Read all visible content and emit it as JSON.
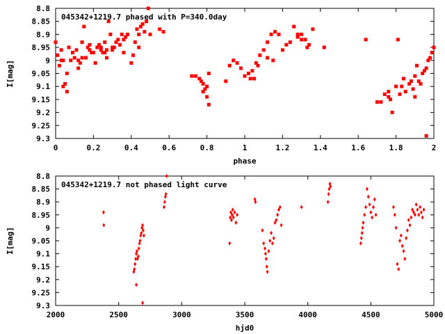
{
  "chart_data": [
    {
      "type": "scatter",
      "title": "045342+1219.7 phased with P=340.0day",
      "xlabel": "phase",
      "ylabel": "I[mag]",
      "xlim": [
        0,
        2
      ],
      "ylim": [
        9.3,
        8.8
      ],
      "y_inverted": true,
      "x_ticks": [
        "0",
        "0.2",
        "0.4",
        "0.6",
        "0.8",
        "1",
        "1.2",
        "1.4",
        "1.6",
        "1.8",
        "2"
      ],
      "y_ticks": [
        "8.8",
        "8.85",
        "8.9",
        "8.95",
        "9",
        "9.05",
        "9.1",
        "9.15",
        "9.2",
        "9.25",
        "9.3"
      ],
      "marker_color": "#ff0000",
      "series": [
        {
          "x": [
            0.0,
            0.01,
            0.02,
            0.03,
            0.04,
            0.05,
            0.06,
            0.07,
            0.08,
            0.09,
            0.1,
            0.11,
            0.12,
            0.13,
            0.14,
            0.15,
            0.16,
            0.17,
            0.18,
            0.19,
            0.2,
            0.21,
            0.22,
            0.23,
            0.24,
            0.25,
            0.26,
            0.27,
            0.28,
            0.29,
            0.3,
            0.31,
            0.32,
            0.33,
            0.34,
            0.35,
            0.36,
            0.37,
            0.38,
            0.4,
            0.41,
            0.42,
            0.43,
            0.44,
            0.45,
            0.46,
            0.47,
            0.48,
            0.49,
            0.5,
            0.55,
            0.57,
            0.72,
            0.74,
            0.76,
            0.77,
            0.78,
            0.79,
            0.8,
            0.81,
            0.9,
            0.92,
            0.94,
            0.96,
            0.98,
            1.0,
            1.02,
            1.04,
            1.06,
            1.08,
            1.1,
            1.12,
            1.14,
            1.16,
            1.18,
            1.2,
            1.22,
            1.24,
            1.26,
            1.28,
            1.3,
            1.32,
            1.34,
            1.36,
            1.64,
            1.7,
            1.72,
            1.74,
            1.76,
            1.78,
            1.8,
            1.81,
            1.83,
            1.85,
            1.87,
            1.89,
            1.9,
            1.92,
            1.94,
            1.95,
            1.96,
            1.97,
            1.98,
            1.99,
            2.0,
            0.04,
            0.06,
            0.12,
            0.14,
            0.18,
            0.24,
            0.26,
            0.3,
            0.34,
            0.36,
            0.44,
            0.78,
            0.8,
            1.05,
            1.07,
            1.12,
            1.15,
            1.28,
            1.3,
            1.42,
            1.76,
            1.82,
            1.84,
            1.9,
            1.93,
            1.96,
            0.03,
            0.27,
            0.81,
            1.03,
            1.33,
            1.77,
            1.88,
            1.91
          ],
          "y": [
            8.93,
            8.98,
            9.02,
            8.96,
            9.0,
            9.09,
            9.12,
            8.95,
            9.0,
            8.97,
            8.99,
            8.96,
            9.0,
            9.01,
            8.99,
            8.87,
            8.99,
            8.95,
            8.96,
            8.97,
            8.97,
            9.01,
            8.95,
            8.94,
            8.96,
            8.97,
            8.93,
            8.99,
            8.85,
            8.9,
            8.95,
            8.95,
            8.93,
            8.92,
            8.94,
            8.9,
            8.97,
            8.91,
            8.9,
            9.01,
            8.98,
            8.93,
            8.88,
            8.95,
            8.87,
            8.86,
            8.89,
            8.85,
            8.8,
            8.9,
            8.88,
            8.89,
            9.06,
            9.06,
            9.07,
            9.08,
            9.09,
            9.11,
            9.14,
            9.17,
            9.08,
            9.02,
            9.0,
            9.01,
            9.03,
            9.06,
            9.05,
            9.04,
            9.01,
            8.98,
            8.96,
            8.93,
            8.9,
            8.89,
            8.9,
            8.96,
            8.94,
            8.93,
            8.87,
            8.9,
            8.9,
            8.92,
            8.94,
            8.88,
            8.92,
            9.16,
            9.16,
            9.13,
            9.12,
            9.2,
            9.1,
            8.92,
            9.1,
            9.12,
            9.09,
            9.11,
            9.14,
            9.08,
            9.05,
            9.04,
            9.03,
            9.0,
            8.99,
            8.97,
            8.95,
            9.1,
            9.05,
            9.03,
            8.93,
            8.94,
            8.95,
            8.97,
            8.96,
            8.94,
            8.92,
            8.9,
            9.12,
            9.1,
            9.07,
            9.02,
            8.99,
            9.0,
            8.91,
            8.92,
            8.95,
            9.14,
            9.13,
            9.07,
            9.06,
            9.09,
            9.29,
            9.0,
            8.96,
            9.05,
            9.07,
            8.95,
            9.15,
            9.08,
            9.02
          ]
        }
      ]
    },
    {
      "type": "scatter",
      "title": "045342+1219.7 not phased light curve",
      "xlabel": "hjd0",
      "ylabel": "I[mag]",
      "xlim": [
        2000,
        5000
      ],
      "ylim": [
        9.3,
        8.8
      ],
      "y_inverted": true,
      "x_ticks": [
        "2000",
        "2500",
        "3000",
        "3500",
        "4000",
        "4500",
        "5000"
      ],
      "y_ticks": [
        "8.8",
        "8.85",
        "8.9",
        "8.95",
        "9",
        "9.05",
        "9.1",
        "9.15",
        "9.2",
        "9.25",
        "9.3"
      ],
      "marker_color": "#ff0000",
      "series": [
        {
          "x": [
            2380,
            2382,
            2620,
            2625,
            2630,
            2635,
            2640,
            2645,
            2650,
            2655,
            2660,
            2665,
            2670,
            2675,
            2680,
            2685,
            2690,
            2695,
            2700,
            2640,
            2690,
            2860,
            2865,
            2870,
            2875,
            2880,
            3380,
            3385,
            3390,
            3395,
            3400,
            3405,
            3410,
            3420,
            3430,
            3440,
            3580,
            3585,
            3640,
            3650,
            3660,
            3665,
            3670,
            3675,
            3680,
            3690,
            3700,
            3710,
            3720,
            3730,
            3740,
            3750,
            3760,
            3770,
            3780,
            3790,
            3950,
            4160,
            4165,
            4170,
            4175,
            4180,
            4420,
            4425,
            4430,
            4435,
            4440,
            4450,
            4460,
            4470,
            4480,
            4490,
            4500,
            4510,
            4520,
            4530,
            4540,
            4680,
            4690,
            4700,
            4710,
            4720,
            4730,
            4740,
            4750,
            4760,
            4770,
            4780,
            4790,
            4800,
            4810,
            4820,
            4830,
            4840,
            4850,
            4860,
            4870,
            4880,
            4890,
            4900,
            4910,
            4920
          ],
          "y": [
            8.94,
            8.99,
            9.17,
            9.16,
            9.14,
            9.12,
            9.1,
            9.09,
            9.12,
            9.11,
            9.08,
            9.06,
            9.05,
            9.03,
            9.02,
            9.0,
            8.99,
            9.01,
            9.03,
            9.22,
            9.29,
            8.92,
            8.9,
            8.88,
            8.87,
            8.8,
            9.06,
            8.96,
            8.94,
            8.97,
            8.95,
            8.93,
            8.96,
            8.94,
            8.98,
            8.95,
            8.89,
            8.9,
            9.01,
            9.06,
            9.08,
            9.1,
            9.12,
            9.15,
            9.17,
            9.09,
            9.05,
            9.02,
            9.06,
            9.04,
            8.98,
            8.97,
            8.95,
            8.93,
            8.92,
            8.99,
            8.92,
            8.9,
            8.87,
            8.85,
            8.83,
            8.84,
            9.06,
            9.04,
            9.02,
            9.0,
            8.98,
            8.95,
            8.92,
            8.85,
            8.88,
            8.91,
            8.94,
            8.96,
            8.92,
            8.89,
            8.95,
            8.92,
            8.95,
            9.0,
            9.14,
            9.16,
            9.05,
            9.03,
            9.07,
            9.09,
            9.12,
            9.04,
            9.01,
            8.97,
            8.99,
            8.96,
            8.93,
            8.94,
            8.95,
            8.91,
            8.93,
            8.95,
            8.92,
            8.94,
            8.96,
            8.93
          ]
        }
      ]
    }
  ]
}
